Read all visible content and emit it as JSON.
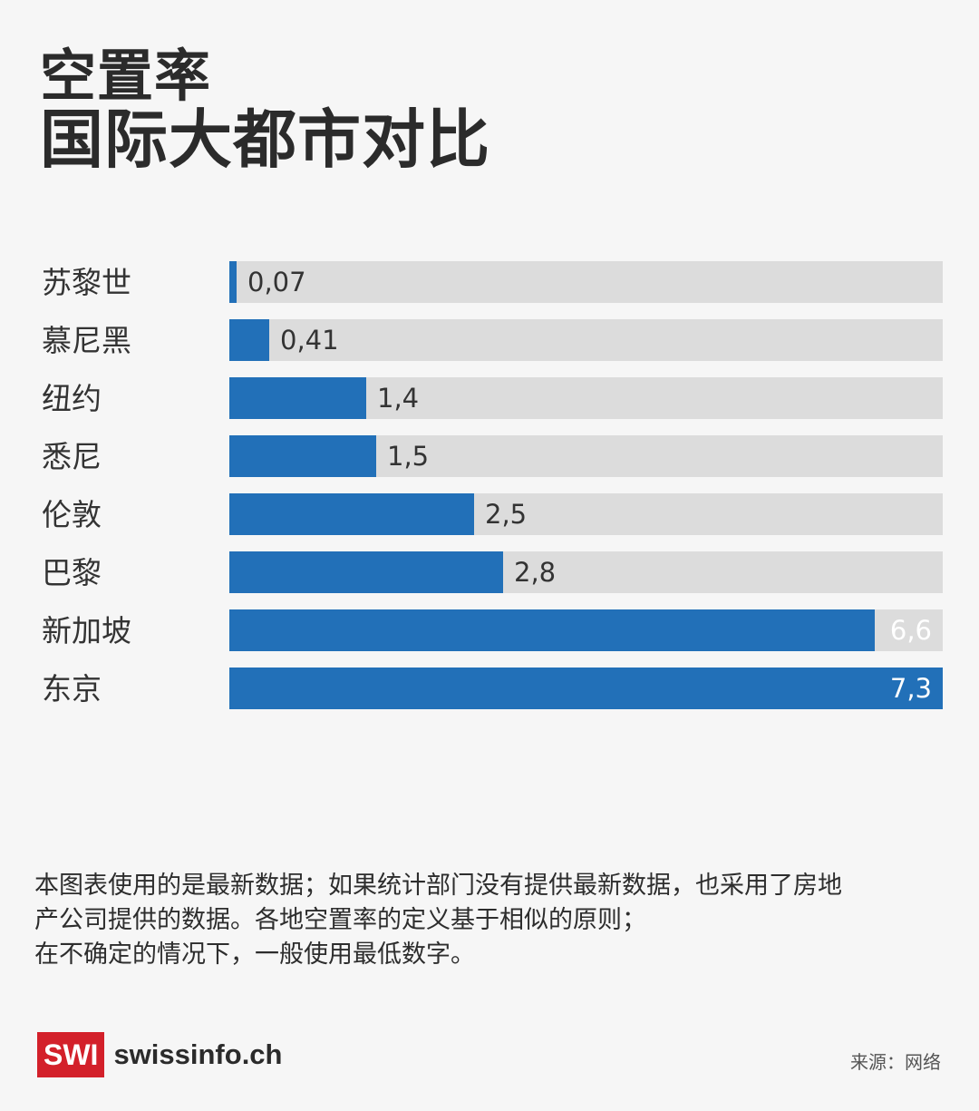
{
  "header": {
    "title": "空置率",
    "subtitle": "国际大都市对比"
  },
  "chart_data": {
    "type": "bar",
    "orientation": "horizontal",
    "title": "空置率",
    "subtitle": "国际大都市对比",
    "categories": [
      "苏黎世",
      "慕尼黑",
      "纽约",
      "悉尼",
      "伦敦",
      "巴黎",
      "新加坡",
      "东京"
    ],
    "values": [
      0.07,
      0.41,
      1.4,
      1.5,
      2.5,
      2.8,
      6.6,
      7.3
    ],
    "value_labels": [
      "0,07",
      "0,41",
      "1,4",
      "1,5",
      "2,5",
      "2,8",
      "6,6",
      "7,3"
    ],
    "xlim": [
      0,
      7.3
    ],
    "grid": false,
    "colors": {
      "bar": "#2270b8",
      "track": "#dcdcdc"
    }
  },
  "footnote": {
    "lines": [
      "本图表使用的是最新数据；如果统计部门没有提供最新数据，也采用了房地",
      "产公司提供的数据。各地空置率的定义基于相似的原则；",
      "在不确定的情况下，一般使用最低数字。"
    ]
  },
  "branding": {
    "logo_mark": "SWI",
    "logo_text": "swissinfo.ch",
    "logo_color": "#d3202a"
  },
  "source": "来源：网络"
}
